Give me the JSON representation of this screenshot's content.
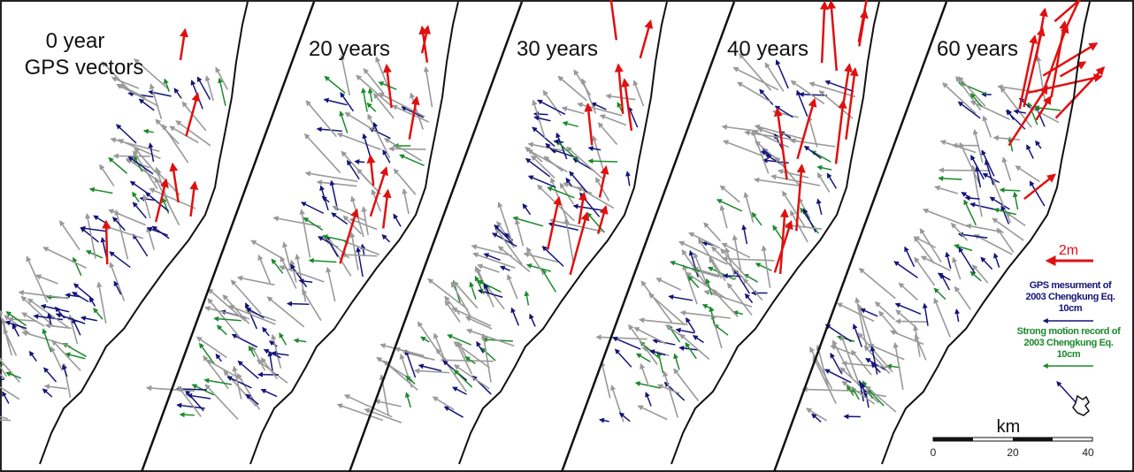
{
  "panels": [
    {
      "label": [
        "0 year",
        "GPS vectors"
      ]
    },
    {
      "label": [
        "20 years"
      ]
    },
    {
      "label": [
        "30 years"
      ]
    },
    {
      "label": [
        "40 years"
      ]
    },
    {
      "label": [
        "60 years"
      ]
    }
  ],
  "legend": {
    "scale_arrow": "2m",
    "gps": [
      "GPS mesurment of",
      "2003 Chengkung Eq.",
      "10cm"
    ],
    "strong_motion": [
      "Strong motion record of",
      "2003 Chengkung Eq.",
      "10cm"
    ]
  },
  "scale_bar": {
    "unit": "km",
    "labels": [
      "0",
      "20",
      "40"
    ]
  }
}
